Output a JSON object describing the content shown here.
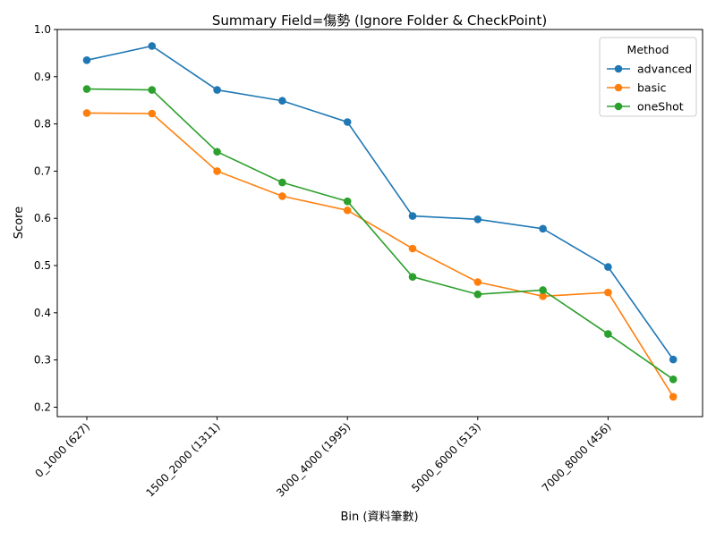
{
  "chart_data": {
    "type": "line",
    "title": "Summary Field=傷勢 (Ignore Folder & CheckPoint)",
    "xlabel": "Bin (資料筆數)",
    "ylabel": "Score",
    "categories": [
      "0_1000 (627)",
      "",
      "1500_2000 (1311)",
      "",
      "3000_4000 (1995)",
      "",
      "5000_6000 (513)",
      "",
      "7000_8000 (456)",
      ""
    ],
    "x_tick_labels": [
      "0_1000 (627)",
      "1500_2000 (1311)",
      "3000_4000 (1995)",
      "5000_6000 (513)",
      "7000_8000 (456)"
    ],
    "x_tick_indices": [
      0,
      2,
      4,
      6,
      8
    ],
    "ylim": [
      0.18,
      1.0
    ],
    "y_ticks": [
      0.2,
      0.3,
      0.4,
      0.5,
      0.6,
      0.7,
      0.8,
      0.9,
      1.0
    ],
    "y_tick_labels": [
      "0.2",
      "0.3",
      "0.4",
      "0.5",
      "0.6",
      "0.7",
      "0.8",
      "0.9",
      "1.0"
    ],
    "grid": false,
    "legend": {
      "title": "Method",
      "placement": "top-right"
    },
    "series": [
      {
        "name": "advanced",
        "color": "#1f77b4",
        "values": [
          0.935,
          0.965,
          0.872,
          0.849,
          0.804,
          0.605,
          0.598,
          0.578,
          0.497,
          0.301
        ]
      },
      {
        "name": "basic",
        "color": "#ff7f0e",
        "values": [
          0.823,
          0.822,
          0.7,
          0.647,
          0.617,
          0.536,
          0.465,
          0.435,
          0.443,
          0.222
        ]
      },
      {
        "name": "oneShot",
        "color": "#2ca02c",
        "values": [
          0.874,
          0.872,
          0.741,
          0.676,
          0.636,
          0.476,
          0.439,
          0.448,
          0.355,
          0.259
        ]
      }
    ]
  }
}
